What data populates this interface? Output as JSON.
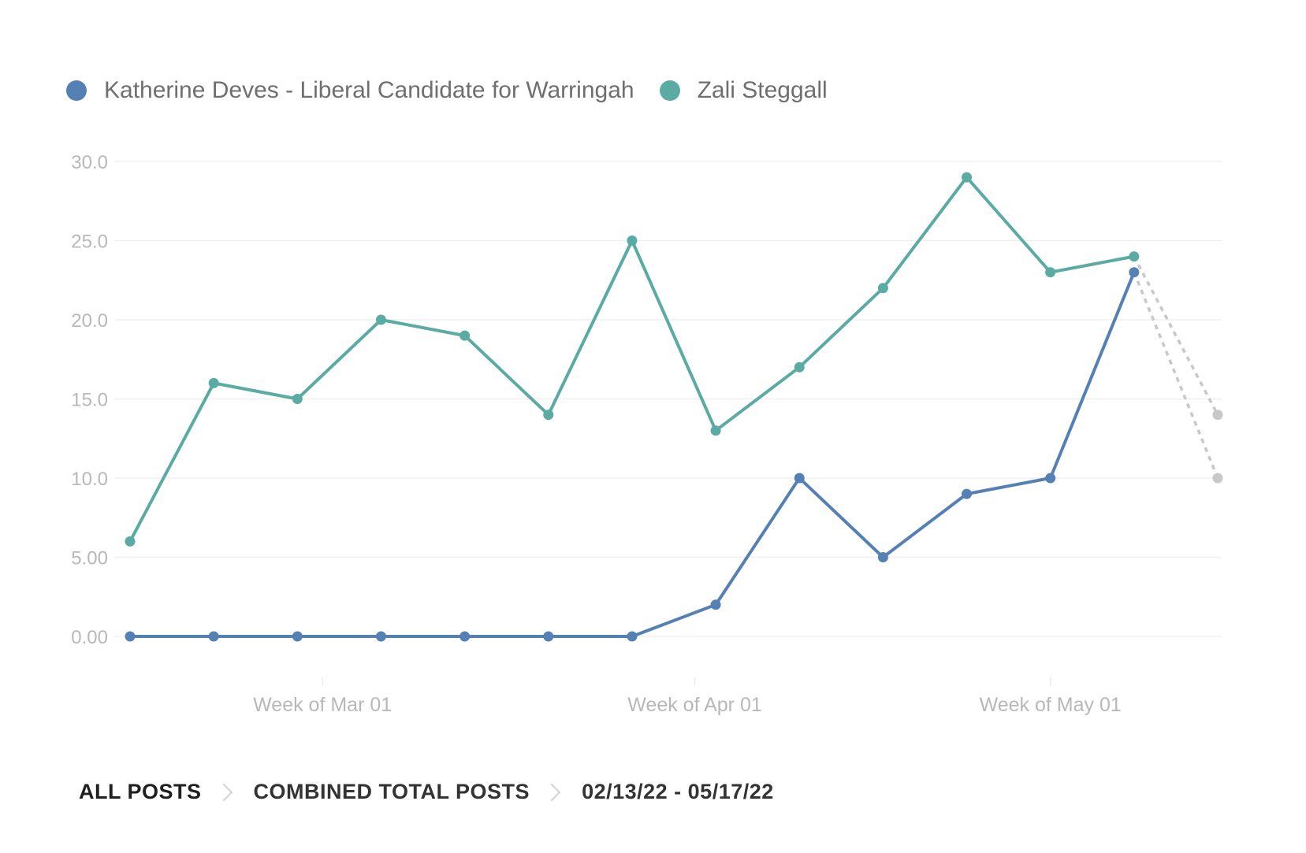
{
  "legend": {
    "items": [
      {
        "label": "Katherine Deves - Liberal Candidate for Warringah",
        "color": "#5580b4"
      },
      {
        "label": "Zali Steggall",
        "color": "#5aaba3"
      }
    ]
  },
  "breadcrumb": {
    "items": [
      "ALL POSTS",
      "COMBINED TOTAL POSTS",
      "02/13/22 - 05/17/22"
    ]
  },
  "chart_data": {
    "type": "line",
    "categories": [
      "2022-02-13",
      "2022-02-20",
      "2022-02-27",
      "2022-03-06",
      "2022-03-13",
      "2022-03-20",
      "2022-03-27",
      "2022-04-03",
      "2022-04-10",
      "2022-04-17",
      "2022-04-24",
      "2022-05-01",
      "2022-05-08",
      "2022-05-15"
    ],
    "x_tick_labels": [
      "Week of Mar 01",
      "Week of Apr 01",
      "Week of May 01"
    ],
    "y_tick_labels": [
      "0.00",
      "5.00",
      "10.0",
      "15.0",
      "20.0",
      "25.0",
      "30.0"
    ],
    "ylim": [
      0,
      30
    ],
    "grid": true,
    "legend_position": "top-left",
    "partial_color": "#c8c8c8",
    "series": [
      {
        "name": "Katherine Deves - Liberal Candidate for Warringah",
        "color": "#5580b4",
        "values": [
          0,
          0,
          0,
          0,
          0,
          0,
          0,
          2,
          10,
          5,
          9,
          10,
          23,
          10
        ]
      },
      {
        "name": "Zali Steggall",
        "color": "#5aaba3",
        "values": [
          6,
          16,
          15,
          20,
          19,
          14,
          25,
          13,
          17,
          22,
          29,
          23,
          24,
          14
        ]
      }
    ]
  }
}
